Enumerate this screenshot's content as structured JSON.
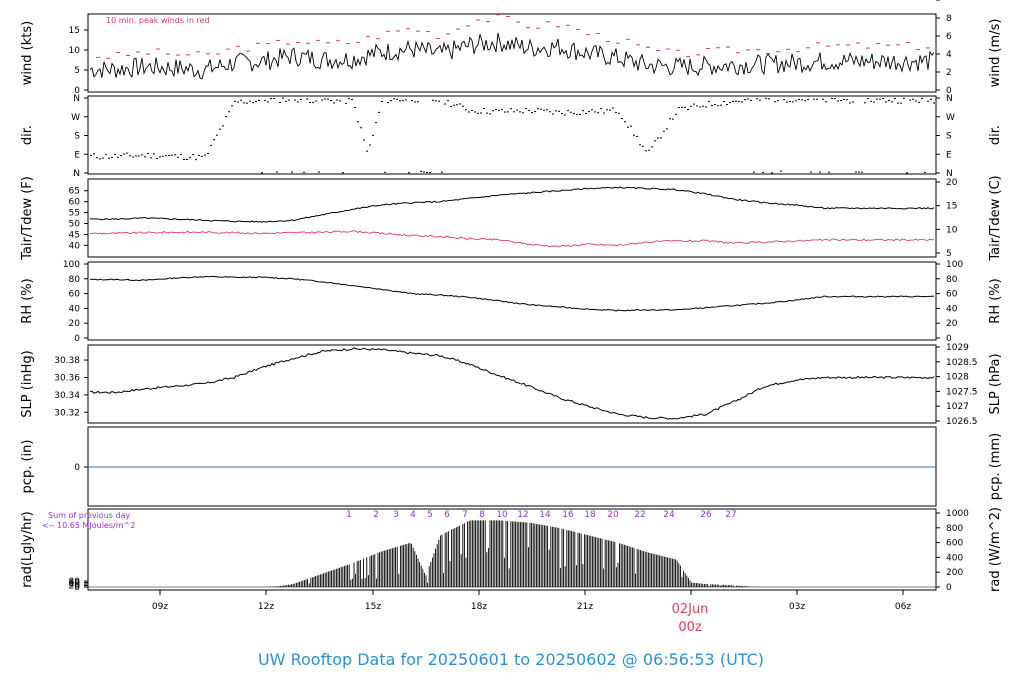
{
  "footer_title": "UW Rooftop Data for 20250601  to  20250602 @ 06:56:53  (UTC)",
  "colors": {
    "line": "#000000",
    "peak": "#d6405a",
    "dew": "#d6405a",
    "precip": "#2e6fb5",
    "rad_annot": "#9b30d9",
    "footer": "#2e8fd6",
    "date_marker": "#d6405a"
  },
  "x_axis": {
    "ticks": [
      "09z",
      "12z",
      "15z",
      "18z",
      "21z",
      "",
      "03z",
      "06z"
    ],
    "date_marker": {
      "date": "02Jun",
      "time": "00z"
    }
  },
  "chart_data": [
    {
      "type": "line",
      "panel": "wind",
      "ylabel_left": "wind (kts)",
      "ylabel_right": "wind (m/s)",
      "annotation": "10 min. peak winds in red",
      "yticks_left": [
        "0",
        "5",
        "10",
        "15"
      ],
      "yticks_right": [
        "0",
        "2",
        "4",
        "6",
        "8"
      ],
      "ylim": [
        0,
        18
      ],
      "series": [
        {
          "values": [
            [
              0,
              5.2
            ],
            [
              1,
              5.8
            ],
            [
              2,
              5.5
            ],
            [
              3,
              5.0
            ],
            [
              4,
              6.8
            ],
            [
              5,
              7.2
            ],
            [
              6,
              8.5
            ],
            [
              7,
              7.6
            ],
            [
              8,
              7.8
            ],
            [
              9,
              9.5
            ],
            [
              10,
              10.2
            ],
            [
              11,
              9.0
            ],
            [
              12,
              11.2
            ],
            [
              13,
              12.0
            ],
            [
              14,
              10.5
            ],
            [
              15,
              10.8
            ],
            [
              16,
              9.2
            ],
            [
              17,
              8.0
            ],
            [
              18,
              6.2
            ],
            [
              19,
              5.8
            ],
            [
              20,
              6.0
            ],
            [
              21,
              6.3
            ],
            [
              22,
              6.5
            ],
            [
              23,
              6.8
            ],
            [
              24,
              7.2
            ]
          ]
        },
        {
          "values": [
            [
              0,
              8.5
            ],
            [
              1,
              9.5
            ],
            [
              2,
              9.0
            ],
            [
              3,
              8.5
            ],
            [
              4,
              10.5
            ],
            [
              5,
              11.0
            ],
            [
              6,
              12.5
            ],
            [
              7,
              11.5
            ],
            [
              8,
              12.0
            ],
            [
              9,
              14.0
            ],
            [
              10,
              15.5
            ],
            [
              11,
              13.5
            ],
            [
              12,
              17.5
            ],
            [
              13,
              18.0
            ],
            [
              14,
              16.0
            ],
            [
              15,
              16.5
            ],
            [
              16,
              14.0
            ],
            [
              17,
              12.5
            ],
            [
              18,
              10.0
            ],
            [
              19,
              9.0
            ],
            [
              20,
              9.5
            ],
            [
              21,
              10.0
            ],
            [
              22,
              10.0
            ],
            [
              23,
              10.5
            ],
            [
              24,
              11.0
            ]
          ]
        }
      ]
    },
    {
      "type": "scatter",
      "panel": "dir",
      "ylabel_left": "dir.",
      "ylabel_right": "dir.",
      "yticks": [
        "N",
        "E",
        "S",
        "W",
        "N"
      ],
      "ylim": [
        0,
        360
      ],
      "values": [
        [
          0,
          80
        ],
        [
          1,
          85
        ],
        [
          2,
          80
        ],
        [
          3,
          75
        ],
        [
          4,
          340
        ],
        [
          5,
          350
        ],
        [
          6,
          355
        ],
        [
          7,
          350
        ],
        [
          8,
          345
        ],
        [
          8.5,
          90
        ],
        [
          9,
          350
        ],
        [
          10,
          355
        ],
        [
          11,
          350
        ],
        [
          12,
          300
        ],
        [
          13,
          295
        ],
        [
          14,
          300
        ],
        [
          15,
          290
        ],
        [
          16,
          295
        ],
        [
          17,
          300
        ],
        [
          18,
          90
        ],
        [
          19,
          300
        ],
        [
          20,
          330
        ],
        [
          21,
          345
        ],
        [
          22,
          355
        ],
        [
          23,
          355
        ],
        [
          24,
          350
        ]
      ]
    },
    {
      "type": "line",
      "panel": "temp",
      "ylabel_left": "Tair/Tdew (F)",
      "ylabel_right": "Tair/Tdew (C)",
      "yticks_left": [
        "40",
        "45",
        "50",
        "55",
        "60",
        "65"
      ],
      "yticks_right": [
        "5",
        "10",
        "15",
        "20"
      ],
      "ylim": [
        36.5,
        69
      ],
      "series": [
        {
          "values": [
            [
              0,
              52.0
            ],
            [
              1,
              52.5
            ],
            [
              2,
              52.0
            ],
            [
              3,
              51.5
            ],
            [
              4,
              51.0
            ],
            [
              5,
              50.8
            ],
            [
              6,
              51.5
            ],
            [
              7,
              54.0
            ],
            [
              8,
              56.5
            ],
            [
              9,
              58.5
            ],
            [
              10,
              59.5
            ],
            [
              11,
              60.0
            ],
            [
              12,
              61.5
            ],
            [
              13,
              63.0
            ],
            [
              14,
              64.0
            ],
            [
              15,
              65.0
            ],
            [
              16,
              66.0
            ],
            [
              17,
              66.5
            ],
            [
              18,
              66.0
            ],
            [
              19,
              65.5
            ],
            [
              20,
              63.5
            ],
            [
              21,
              61.0
            ],
            [
              22,
              59.5
            ],
            [
              23,
              58.5
            ],
            [
              24,
              57.0
            ]
          ]
        },
        {
          "values": [
            [
              0,
              45.5
            ],
            [
              1,
              45.8
            ],
            [
              2,
              46.0
            ],
            [
              3,
              46.0
            ],
            [
              4,
              45.8
            ],
            [
              5,
              45.5
            ],
            [
              6,
              45.8
            ],
            [
              7,
              46.0
            ],
            [
              8,
              46.5
            ],
            [
              9,
              45.5
            ],
            [
              10,
              44.5
            ],
            [
              11,
              44.0
            ],
            [
              12,
              43.0
            ],
            [
              13,
              42.5
            ],
            [
              14,
              40.5
            ],
            [
              15,
              39.5
            ],
            [
              16,
              40.5
            ],
            [
              17,
              40.0
            ],
            [
              18,
              41.5
            ],
            [
              19,
              42.0
            ],
            [
              20,
              42.0
            ],
            [
              21,
              41.0
            ],
            [
              22,
              41.5
            ],
            [
              23,
              42.0
            ],
            [
              24,
              42.5
            ]
          ]
        }
      ]
    },
    {
      "type": "line",
      "panel": "rh",
      "ylabel_left": "RH (%)",
      "ylabel_right": "RH (%)",
      "yticks_left": [
        "0",
        "20",
        "40",
        "60",
        "80",
        "100"
      ],
      "yticks_right": [
        "0",
        "20",
        "40",
        "60",
        "80",
        "100"
      ],
      "ylim": [
        0,
        100
      ],
      "values": [
        [
          0,
          79
        ],
        [
          1,
          78
        ],
        [
          2,
          81
        ],
        [
          3,
          83
        ],
        [
          4,
          82
        ],
        [
          5,
          82
        ],
        [
          6,
          80
        ],
        [
          7,
          76
        ],
        [
          8,
          71
        ],
        [
          9,
          66
        ],
        [
          10,
          60
        ],
        [
          11,
          58
        ],
        [
          12,
          55
        ],
        [
          13,
          50
        ],
        [
          14,
          45
        ],
        [
          15,
          42
        ],
        [
          16,
          39
        ],
        [
          17,
          37
        ],
        [
          18,
          38
        ],
        [
          19,
          38
        ],
        [
          20,
          41
        ],
        [
          21,
          44
        ],
        [
          22,
          47
        ],
        [
          23,
          51
        ],
        [
          24,
          56
        ]
      ]
    },
    {
      "type": "line",
      "panel": "slp",
      "ylabel_left": "SLP (inHg)",
      "ylabel_right": "SLP (hPa)",
      "yticks_left": [
        "30.32",
        "30.34",
        "30.36",
        "30.38"
      ],
      "yticks_right": [
        "1026.5",
        "1027",
        "1027.5",
        "1028",
        "1028.5",
        "1029"
      ],
      "ylim": [
        30.31,
        30.395
      ],
      "values": [
        [
          0,
          30.343
        ],
        [
          1,
          30.347
        ],
        [
          2,
          30.35
        ],
        [
          3,
          30.353
        ],
        [
          4,
          30.36
        ],
        [
          5,
          30.372
        ],
        [
          6,
          30.382
        ],
        [
          7,
          30.39
        ],
        [
          8,
          30.393
        ],
        [
          9,
          30.392
        ],
        [
          10,
          30.388
        ],
        [
          11,
          30.385
        ],
        [
          12,
          30.375
        ],
        [
          13,
          30.362
        ],
        [
          14,
          30.35
        ],
        [
          15,
          30.337
        ],
        [
          16,
          30.327
        ],
        [
          17,
          30.318
        ],
        [
          18,
          30.314
        ],
        [
          19,
          30.313
        ],
        [
          20,
          30.318
        ],
        [
          21,
          30.333
        ],
        [
          22,
          30.35
        ],
        [
          23,
          30.357
        ],
        [
          24,
          30.36
        ]
      ]
    },
    {
      "type": "line",
      "panel": "precip",
      "ylabel_left": "pcp. (in)",
      "ylabel_right": "pcp. (mm)",
      "yticks_left": [
        "0"
      ],
      "yticks_right": [
        "0"
      ],
      "ylim": [
        -1,
        1
      ],
      "values": [
        [
          0,
          0
        ],
        [
          24,
          0
        ]
      ]
    },
    {
      "type": "bar",
      "panel": "rad",
      "ylabel_left": "rad(Lgly/hr)",
      "ylabel_right": "rad (W/m^2)",
      "yticks_left": [
        "0",
        "20",
        "40",
        "60",
        "80"
      ],
      "yticks_right": [
        "0",
        "200",
        "400",
        "600",
        "800",
        "1000"
      ],
      "ylim": [
        0,
        1000
      ],
      "annotations": [
        "Sum of previous day",
        "<-- 10.65 MJoules/m^2"
      ],
      "hour_labels": [
        "1",
        "2",
        "3",
        "4",
        "5",
        "6",
        "7",
        "8",
        "10",
        "12",
        "14",
        "16",
        "18",
        "20",
        "22",
        "24",
        "26",
        "27"
      ],
      "values": [
        [
          5,
          0
        ],
        [
          5.5,
          10
        ],
        [
          6,
          40
        ],
        [
          7,
          180
        ],
        [
          8,
          320
        ],
        [
          9,
          480
        ],
        [
          10,
          600
        ],
        [
          10.5,
          150
        ],
        [
          11,
          700
        ],
        [
          12,
          900
        ],
        [
          13,
          900
        ],
        [
          14,
          870
        ],
        [
          15,
          800
        ],
        [
          16,
          700
        ],
        [
          17,
          600
        ],
        [
          18,
          470
        ],
        [
          19,
          370
        ],
        [
          19.5,
          60
        ],
        [
          20,
          40
        ],
        [
          21,
          20
        ],
        [
          21.5,
          5
        ],
        [
          22,
          0
        ]
      ]
    }
  ]
}
